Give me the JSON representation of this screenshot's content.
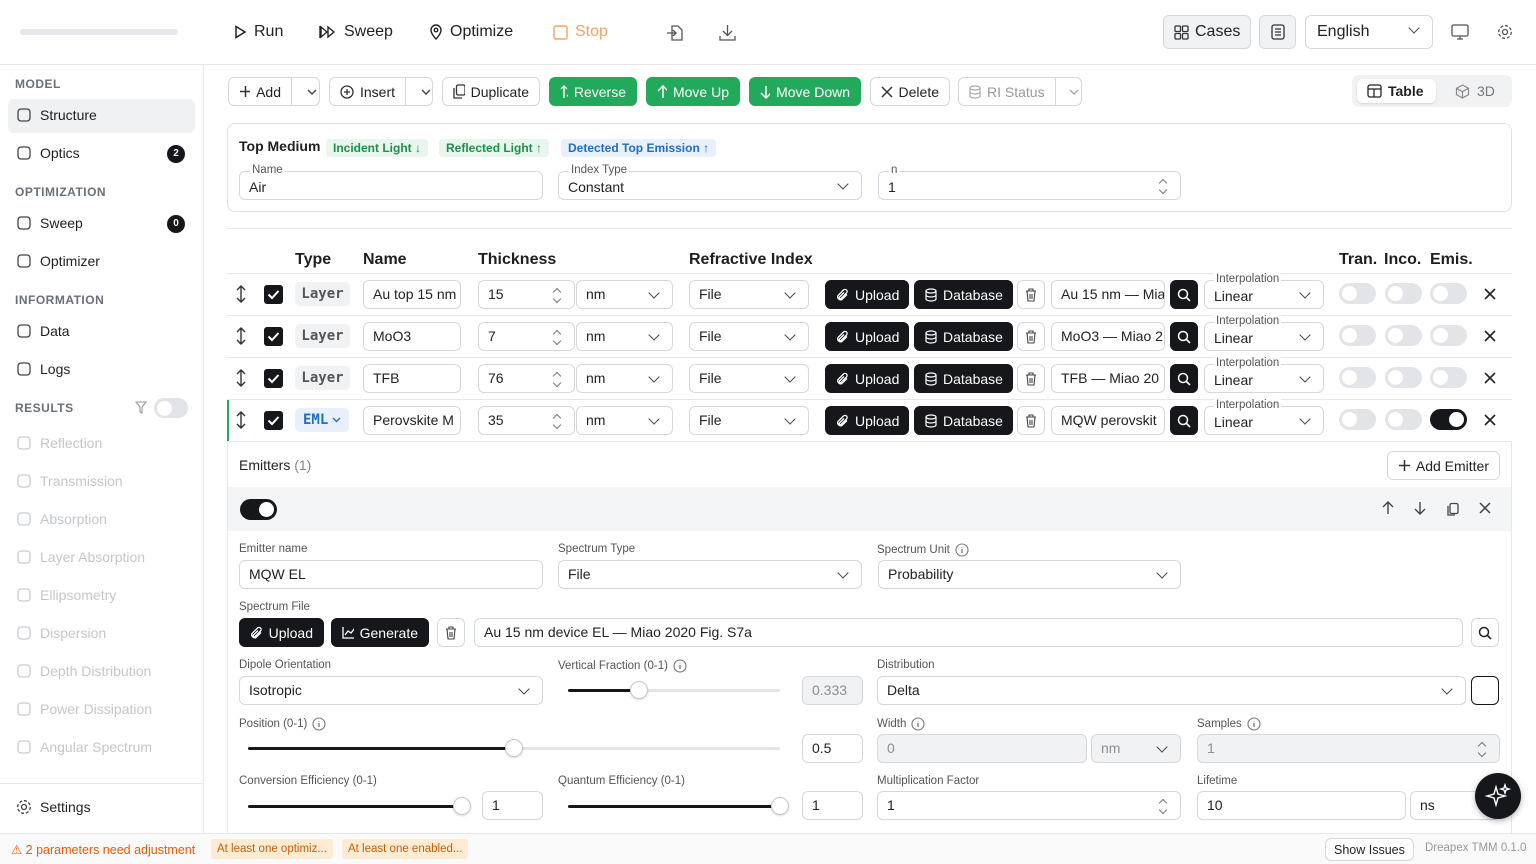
{
  "toolbar": {
    "run": "Run",
    "sweep": "Sweep",
    "optimize": "Optimize",
    "stop": "Stop",
    "cases": "Cases",
    "language": "English"
  },
  "sidebar": {
    "sections": [
      {
        "title": "MODEL",
        "items": [
          {
            "label": "Structure",
            "active": true
          },
          {
            "label": "Optics",
            "badge": 2
          }
        ]
      },
      {
        "title": "OPTIMIZATION",
        "items": [
          {
            "label": "Sweep",
            "badge": 0
          },
          {
            "label": "Optimizer"
          }
        ]
      },
      {
        "title": "INFORMATION",
        "items": [
          {
            "label": "Data"
          },
          {
            "label": "Logs"
          }
        ]
      },
      {
        "title": "RESULTS",
        "disabled": true,
        "items": [
          {
            "label": "Reflection"
          },
          {
            "label": "Transmission"
          },
          {
            "label": "Absorption"
          },
          {
            "label": "Layer Absorption"
          },
          {
            "label": "Ellipsometry"
          },
          {
            "label": "Dispersion"
          },
          {
            "label": "Depth Distribution"
          },
          {
            "label": "Power Dissipation"
          },
          {
            "label": "Angular Spectrum"
          }
        ]
      }
    ],
    "settings": "Settings"
  },
  "actions": {
    "add": "Add",
    "insert": "Insert",
    "duplicate": "Duplicate",
    "reverse": "Reverse",
    "move_up": "Move Up",
    "move_down": "Move Down",
    "delete": "Delete",
    "ri_status": "RI Status",
    "table": "Table",
    "view_3d": "3D"
  },
  "top_medium": {
    "title": "Top Medium",
    "tags": [
      "Incident Light ↓",
      "Reflected Light ↑",
      "Detected Top Emission ↑"
    ],
    "name_label": "Name",
    "name": "Air",
    "index_type_label": "Index Type",
    "index_type": "Constant",
    "n_label": "n",
    "n": 1
  },
  "layers": {
    "headers": {
      "type": "Type",
      "name": "Name",
      "thickness": "Thickness",
      "refractive_index": "Refractive Index",
      "tran": "Tran.",
      "inco": "Inco.",
      "emis": "Emis."
    },
    "upload": "Upload",
    "database": "Database",
    "interpolation_label": "Interpolation",
    "rows": [
      {
        "type": "Layer",
        "name": "Au top 15 nm",
        "thickness": 15,
        "unit": "nm",
        "source": "File",
        "file": "Au 15 nm — Mia",
        "interpolation": "Linear",
        "tran": false,
        "inco": false,
        "emis": false
      },
      {
        "type": "Layer",
        "name": "MoO3",
        "thickness": 7,
        "unit": "nm",
        "source": "File",
        "file": "MoO3 — Miao 2",
        "interpolation": "Linear",
        "tran": false,
        "inco": false,
        "emis": false
      },
      {
        "type": "Layer",
        "name": "TFB",
        "thickness": 76,
        "unit": "nm",
        "source": "File",
        "file": "TFB — Miao 20",
        "interpolation": "Linear",
        "tran": false,
        "inco": false,
        "emis": false
      },
      {
        "type": "EML",
        "name": "Perovskite M",
        "thickness": 35,
        "unit": "nm",
        "source": "File",
        "file": "MQW perovskit",
        "interpolation": "Linear",
        "tran": false,
        "inco": false,
        "emis": true
      }
    ]
  },
  "emitters": {
    "title": "Emitters",
    "count": "(1)",
    "add": "Add Emitter",
    "enabled": true,
    "name_label": "Emitter name",
    "name": "MQW EL",
    "spectrum_type_label": "Spectrum Type",
    "spectrum_type": "File",
    "spectrum_unit_label": "Spectrum Unit",
    "spectrum_unit": "Probability",
    "spectrum_file_label": "Spectrum File",
    "upload": "Upload",
    "generate": "Generate",
    "spectrum_file": "Au 15 nm device EL — Miao 2020 Fig. S7a",
    "dipole_label": "Dipole Orientation",
    "dipole": "Isotropic",
    "vertical_fraction_label": "Vertical Fraction (0-1)",
    "vertical_fraction": 0.333,
    "distribution_label": "Distribution",
    "distribution": "Delta",
    "position_label": "Position (0-1)",
    "position": 0.5,
    "width_label": "Width",
    "width": 0,
    "width_unit": "nm",
    "samples_label": "Samples",
    "samples": 1,
    "conversion_label": "Conversion Efficiency (0-1)",
    "conversion": 1,
    "quantum_label": "Quantum Efficiency (0-1)",
    "quantum": 1,
    "multiplication_label": "Multiplication Factor",
    "multiplication": 1,
    "lifetime_label": "Lifetime",
    "lifetime": 10,
    "lifetime_unit": "ns"
  },
  "status": {
    "warning": "⚠ 2 parameters need adjustment",
    "chips": [
      "At least one optimiz...",
      "At least one enabled..."
    ],
    "show_issues": "Show Issues",
    "version": "Dreapex TMM 0.1.0"
  }
}
